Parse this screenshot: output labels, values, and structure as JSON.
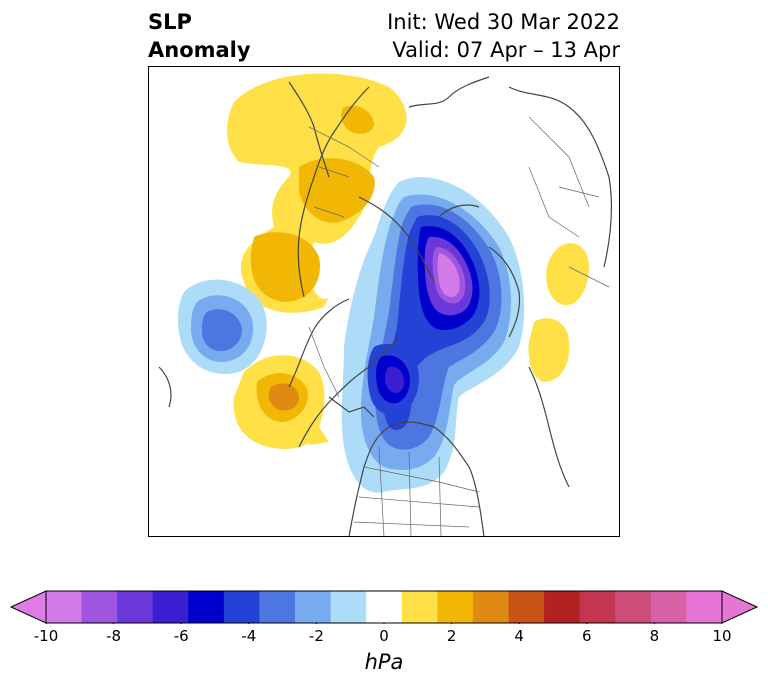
{
  "title": {
    "line1": "SLP",
    "line2": "Anomaly",
    "init": "Init: Wed 30 Mar 2022",
    "valid": "Valid: 07 Apr – 13 Apr"
  },
  "colorbar": {
    "unit": "hPa",
    "ticks": [
      "-10",
      "-8",
      "-6",
      "-4",
      "-2",
      "0",
      "2",
      "4",
      "6",
      "8",
      "10"
    ],
    "levels": [
      -10,
      -9,
      -8,
      -7,
      -6,
      -5,
      -4,
      -3,
      -2,
      -1,
      1,
      2,
      3,
      4,
      5,
      6,
      7,
      8,
      9,
      10
    ],
    "colors": [
      "#d27ae6",
      "#9f55e0",
      "#6a38d8",
      "#3a1fd0",
      "#0000cd",
      "#2443d6",
      "#4d76e0",
      "#78aaf0",
      "#acdcf8",
      "#ffffff",
      "#ffe047",
      "#f2b705",
      "#df8b12",
      "#c95418",
      "#b32222",
      "#c2364f",
      "#cc4d7a",
      "#d761a7",
      "#e675d5"
    ],
    "extend_min_color": "#e07ae6",
    "extend_max_color": "#e675d5"
  },
  "map": {
    "projection": "north-polar-stereographic",
    "variable": "sea level pressure anomaly",
    "features": [
      "coastlines",
      "country borders",
      "US states",
      "Canadian provinces"
    ]
  }
}
